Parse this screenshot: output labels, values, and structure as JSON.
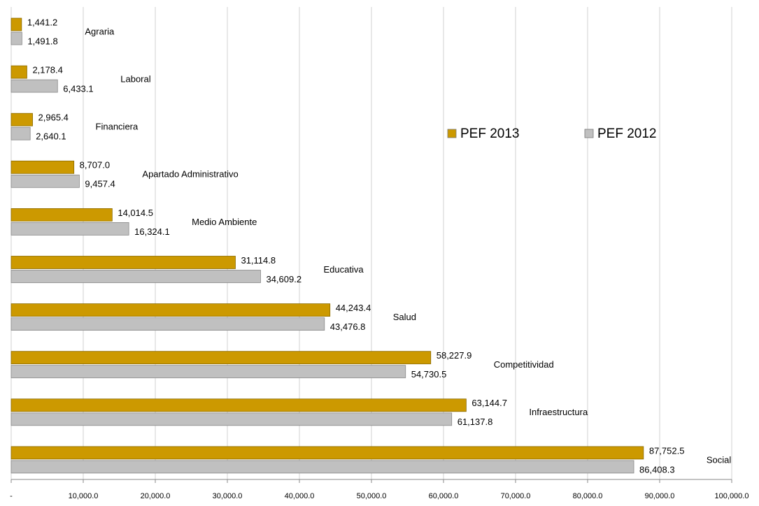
{
  "chart_data": {
    "type": "bar",
    "orientation": "horizontal",
    "categories": [
      "Agraria",
      "Laboral",
      "Financiera",
      "Apartado Administrativo",
      "Medio Ambiente",
      "Educativa",
      "Salud",
      "Competitividad",
      "Infraestructura",
      "Social"
    ],
    "series": [
      {
        "name": "PEF 2013",
        "color": "#cc9900",
        "values": [
          1441.2,
          2178.4,
          2965.4,
          8707.0,
          14014.5,
          31114.8,
          44243.4,
          58227.9,
          63144.7,
          87752.5
        ],
        "value_labels": [
          "1,441.2",
          "2,178.4",
          "2,965.4",
          "8,707.0",
          "14,014.5",
          "31,114.8",
          "44,243.4",
          "58,227.9",
          "63,144.7",
          "87,752.5"
        ]
      },
      {
        "name": "PEF 2012",
        "color": "#c0c0c0",
        "values": [
          1491.8,
          6433.1,
          2640.1,
          9457.4,
          16324.1,
          34609.2,
          43476.8,
          54730.5,
          61137.8,
          86408.3
        ],
        "value_labels": [
          "1,491.8",
          "6,433.1",
          "2,640.1",
          "9,457.4",
          "16,324.1",
          "34,609.2",
          "43,476.8",
          "54,730.5",
          "61,137.8",
          "86,408.3"
        ]
      }
    ],
    "xlim": [
      0,
      100000
    ],
    "xticks": [
      {
        "value": 0,
        "label": "-"
      },
      {
        "value": 10000,
        "label": "10,000.0"
      },
      {
        "value": 20000,
        "label": "20,000.0"
      },
      {
        "value": 30000,
        "label": "30,000.0"
      },
      {
        "value": 40000,
        "label": "40,000.0"
      },
      {
        "value": 50000,
        "label": "50,000.0"
      },
      {
        "value": 60000,
        "label": "60,000.0"
      },
      {
        "value": 70000,
        "label": "70,000.0"
      },
      {
        "value": 80000,
        "label": "80,000.0"
      },
      {
        "value": 90000,
        "label": "90,000.0"
      },
      {
        "value": 100000,
        "label": "100,000.0"
      }
    ],
    "grid": true
  }
}
